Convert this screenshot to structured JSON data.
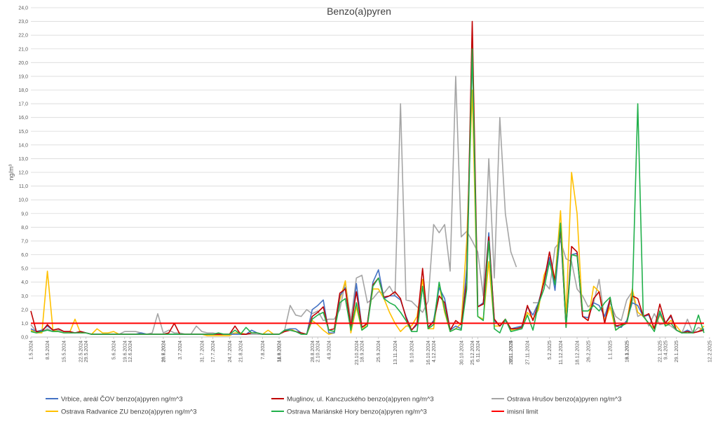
{
  "chart_data": {
    "type": "line",
    "title": "Benzo(a)pyren",
    "xlabel": "",
    "ylabel": "ng/m³",
    "ylim": [
      0,
      24
    ],
    "y_ticks": [
      "0,0",
      "1,0",
      "2,0",
      "3,0",
      "4,0",
      "5,0",
      "6,0",
      "7,0",
      "8,0",
      "9,0",
      "10,0",
      "11,0",
      "12,0",
      "13,0",
      "14,0",
      "15,0",
      "16,0",
      "17,0",
      "18,0",
      "19,0",
      "20,0",
      "21,0",
      "22,0",
      "23,0",
      "24,0"
    ],
    "grid": true,
    "legend_position": "bottom",
    "x": [
      "1.5.2024",
      "2.5.2024",
      "5.5.2024",
      "8.5.2024",
      "11.5.2024",
      "14.5.2024",
      "17.5.2024",
      "20.5.2024",
      "23.5.2024",
      "26.5.2024",
      "29.5.2024",
      "1.6.2024",
      "4.6.2024",
      "7.6.2024",
      "10.6.2024",
      "13.6.2024",
      "16.6.2024",
      "19.6.2024",
      "22.6.2024",
      "25.6.2024",
      "28.6.2024",
      "1.7.2024",
      "4.7.2024",
      "7.7.2024",
      "10.7.2024",
      "13.7.2024",
      "16.7.2024",
      "19.7.2024",
      "22.7.2024",
      "25.7.2024",
      "28.7.2024",
      "31.7.2024",
      "3.8.2024",
      "6.8.2024",
      "9.8.2024",
      "12.8.2024",
      "15.8.2024",
      "18.8.2024",
      "21.8.2024",
      "24.8.2024",
      "27.8.2024",
      "30.8.2024",
      "2.9.2024",
      "5.9.2024",
      "8.9.2024",
      "11.9.2024",
      "14.9.2024",
      "17.9.2024",
      "20.9.2024",
      "23.9.2024",
      "26.9.2024",
      "29.9.2024",
      "2.10.2024",
      "5.10.2024",
      "8.10.2024",
      "11.10.2024",
      "14.10.2024",
      "17.10.2024",
      "20.10.2024",
      "23.10.2024",
      "26.10.2024",
      "29.10.2024",
      "1.11.2024",
      "4.11.2024",
      "7.11.2024",
      "10.11.2024",
      "13.11.2024",
      "16.11.2024",
      "19.11.2024",
      "22.11.2024",
      "25.11.2024",
      "28.11.2024",
      "1.12.2024",
      "4.12.2024",
      "7.12.2024",
      "10.12.2024",
      "13.12.2024",
      "16.12.2024",
      "19.12.2024",
      "22.12.2024",
      "25.12.2024",
      "28.12.2024",
      "31.12.2024",
      "3.1.2025",
      "6.1.2025",
      "9.1.2025",
      "12.1.2025",
      "15.1.2025",
      "18.1.2025",
      "21.1.2025",
      "24.1.2025",
      "27.1.2025",
      "30.1.2025",
      "2.2.2025",
      "5.2.2025",
      "8.2.2025",
      "11.2.2025",
      "14.2.2025",
      "17.2.2025",
      "20.2.2025",
      "23.2.2025",
      "26.2.2025",
      "1.3.2025",
      "4.3.2025",
      "7.3.2025",
      "10.3.2025",
      "13.3.2025",
      "16.3.2025",
      "19.3.2025",
      "22.3.2025",
      "25.3.2025",
      "28.3.2025",
      "31.3.2025",
      "3.4.2025",
      "6.4.2025",
      "9.4.2025",
      "12.4.2025",
      "15.4.2025",
      "18.4.2025",
      "21.4.2025",
      "24.4.2025",
      "27.4.2025",
      "30.4.2025"
    ],
    "x_tick_labels": [
      "1.5.2024",
      "8.5.2024",
      "15.5.2024",
      "22.5.2024",
      "29.5.2024",
      "5.6.2024",
      "12.6.2024",
      "19.6.2024",
      "26.6.2024",
      "3.7.2024",
      "10.7.2024",
      "17.7.2024",
      "24.7.2024",
      "31.7.2024",
      "7.8.2024",
      "14.8.2024",
      "21.8.2024",
      "28.8.2024",
      "4.9.2024",
      "11.9.2024",
      "18.9.2024",
      "25.9.2024",
      "2.10.2024",
      "9.10.2024",
      "16.10.2024",
      "23.10.2024",
      "30.10.2024",
      "6.11.2024",
      "13.11.2024",
      "20.11.2024",
      "27.11.2024",
      "4.12.2024",
      "11.12.2024",
      "18.12.2024",
      "25.12.2024",
      "1.1.2025",
      "8.1.2025",
      "15.1.2025",
      "22.1.2025",
      "29.1.2025",
      "5.2.2025",
      "12.2.2025",
      "19.2.2025",
      "26.2.2025",
      "5.3.2025",
      "12.3.2025",
      "19.3.2025",
      "26.3.2025",
      "2.4.2025",
      "9.4.2025",
      "16.4.2025",
      "23.4.2025"
    ],
    "series": [
      {
        "name": "Vrbice, areál ČOV benzo(a)pyren ng/m^3",
        "color": "#4472C4",
        "width": 1.6,
        "values": [
          0.6,
          0.4,
          0.5,
          0.8,
          0.5,
          0.6,
          0.4,
          0.4,
          0.3,
          0.4,
          0.3,
          0.2,
          0.2,
          0.2,
          0.2,
          0.2,
          0.2,
          0.2,
          0.2,
          0.2,
          0.3,
          0.2,
          0.2,
          0.2,
          0.2,
          0.2,
          0.2,
          0.2,
          0.2,
          0.2,
          0.2,
          0.2,
          0.2,
          0.2,
          0.2,
          0.2,
          0.2,
          0.2,
          0.2,
          0.2,
          0.5,
          0.3,
          0.2,
          0.2,
          0.2,
          0.2,
          0.5,
          0.6,
          0.6,
          0.3,
          0.2,
          2.0,
          2.3,
          2.7,
          0.3,
          0.3,
          3.0,
          3.6,
          0.5,
          3.9,
          0.7,
          1.0,
          4.0,
          4.9,
          2.8,
          3.0,
          3.0,
          2.7,
          1.5,
          0.5,
          0.9,
          3.7,
          0.7,
          1.2,
          3.6,
          2.8,
          0.5,
          0.8,
          0.6,
          5.0,
          21.0,
          2.2,
          2.5,
          7.6,
          1.2,
          0.8,
          1.2,
          0.6,
          0.7,
          0.8,
          2.2,
          1.6,
          2.5,
          4.0,
          5.8,
          3.4,
          7.8,
          0.8,
          6.0,
          6.1,
          1.5,
          1.4,
          2.5,
          2.3,
          1.5,
          2.8,
          0.8,
          0.7,
          1.2,
          2.5,
          2.3,
          1.5,
          1.6,
          0.6,
          1.7,
          1.0,
          1.5,
          0.5,
          0.3,
          0.5,
          0.3,
          0.4,
          0.6
        ]
      },
      {
        "name": "Muglinov, ul. Kanczuckého benzo(a)pyren ng/m^3",
        "color": "#C00000",
        "width": 1.6,
        "values": [
          1.9,
          0.4,
          0.4,
          0.9,
          0.5,
          0.6,
          0.4,
          0.4,
          0.3,
          0.4,
          0.3,
          0.2,
          0.2,
          0.2,
          0.2,
          0.2,
          0.2,
          0.2,
          0.2,
          0.2,
          0.2,
          0.2,
          0.2,
          0.2,
          0.2,
          0.3,
          1.0,
          0.2,
          0.2,
          0.2,
          0.2,
          0.2,
          0.2,
          0.2,
          0.2,
          0.2,
          0.2,
          0.8,
          0.2,
          0.2,
          0.3,
          0.3,
          0.2,
          0.2,
          0.2,
          0.2,
          0.4,
          0.5,
          0.4,
          0.3,
          0.2,
          1.5,
          1.8,
          2.2,
          0.5,
          0.6,
          3.2,
          3.5,
          0.8,
          3.3,
          0.7,
          1.0,
          3.8,
          4.3,
          2.9,
          3.0,
          3.3,
          2.8,
          1.4,
          0.5,
          1.0,
          5.0,
          0.7,
          1.1,
          3.0,
          2.5,
          0.5,
          1.2,
          0.9,
          4.0,
          23.0,
          2.2,
          2.4,
          7.3,
          1.3,
          0.8,
          1.3,
          0.6,
          0.6,
          0.7,
          2.3,
          1.2,
          2.4,
          4.0,
          6.2,
          4.1,
          8.0,
          0.7,
          6.6,
          6.2,
          1.5,
          1.2,
          2.8,
          3.3,
          1.0,
          2.8,
          0.8,
          0.9,
          1.0,
          3.0,
          2.8,
          1.5,
          1.7,
          0.6,
          2.4,
          1.0,
          1.6,
          0.5,
          0.3,
          0.4,
          0.3,
          0.4,
          0.5
        ]
      },
      {
        "name": "Ostrava Hrušov benzo(a)pyren ng/m^3",
        "color": "#A5A5A5",
        "width": 1.6,
        "values": [
          0.9,
          0.4,
          0.4,
          0.6,
          0.4,
          0.5,
          0.4,
          0.3,
          0.3,
          0.4,
          0.3,
          0.2,
          0.2,
          0.2,
          0.2,
          0.2,
          0.2,
          0.4,
          0.4,
          0.4,
          0.3,
          0.2,
          0.3,
          1.7,
          0.3,
          0.5,
          0.3,
          0.3,
          0.2,
          0.2,
          0.8,
          0.4,
          0.3,
          0.3,
          0.2,
          0.2,
          0.2,
          0.3,
          0.2,
          0.2,
          0.2,
          0.2,
          0.2,
          0.2,
          0.2,
          0.2,
          0.5,
          2.3,
          1.6,
          1.5,
          2.0,
          1.7,
          1.9,
          1.2,
          1.3,
          1.3,
          2.0,
          4.0,
          1.2,
          4.3,
          4.5,
          2.5,
          2.8,
          3.3,
          3.2,
          3.7,
          3.0,
          17.0,
          2.7,
          2.6,
          2.2,
          1.8,
          2.6,
          8.2,
          7.6,
          8.2,
          4.8,
          19.0,
          7.3,
          7.7,
          7.0,
          6.2,
          3.0,
          13.0,
          4.3,
          16.0,
          9.0,
          6.2,
          5.1,
          null,
          null,
          2.5,
          2.5,
          4.0,
          3.5,
          6.5,
          7.0,
          5.7,
          5.5,
          3.5,
          3.0,
          2.2,
          2.5,
          4.2,
          1.2,
          2.5,
          1.5,
          1.2,
          2.7,
          3.3,
          1.5,
          1.7,
          0.8,
          1.7,
          0.9,
          1.0,
          0.8,
          0.5,
          0.3,
          1.3,
          0.3,
          0.7,
          0.5
        ]
      },
      {
        "name": "Ostrava Radvanice ZU benzo(a)pyren ng/m^3",
        "color": "#FFC000",
        "width": 1.6,
        "values": [
          0.5,
          0.3,
          0.3,
          4.8,
          0.5,
          0.4,
          0.3,
          0.3,
          1.3,
          0.3,
          0.3,
          0.2,
          0.6,
          0.3,
          0.3,
          0.4,
          0.2,
          0.2,
          0.2,
          0.2,
          0.2,
          0.2,
          0.2,
          0.2,
          0.2,
          0.2,
          0.2,
          0.2,
          0.2,
          0.2,
          0.2,
          0.2,
          0.1,
          0.1,
          0.1,
          0.1,
          0.1,
          0.3,
          0.3,
          0.2,
          0.3,
          0.3,
          0.2,
          0.5,
          0.2,
          0.2,
          0.5,
          0.6,
          0.4,
          0.3,
          0.2,
          1.2,
          0.9,
          0.5,
          0.2,
          0.3,
          2.7,
          4.1,
          0.3,
          2.2,
          0.5,
          1.0,
          3.5,
          3.5,
          2.8,
          1.8,
          1.0,
          0.4,
          0.8,
          0.8,
          1.5,
          4.2,
          0.6,
          0.6,
          3.8,
          1.8,
          0.4,
          0.6,
          1.0,
          7.0,
          18.0,
          1.5,
          1.3,
          5.5,
          0.8,
          0.8,
          1.3,
          0.5,
          0.6,
          0.8,
          1.8,
          1.3,
          2.0,
          4.5,
          5.5,
          4.2,
          9.2,
          1.5,
          12.0,
          9.0,
          1.5,
          1.2,
          3.7,
          3.3,
          1.2,
          2.2,
          0.5,
          0.8,
          1.0,
          3.5,
          1.8,
          1.5,
          1.0,
          0.6,
          1.6,
          0.9,
          1.2,
          0.8,
          0.3,
          0.4,
          0.3,
          0.4,
          0.8
        ]
      },
      {
        "name": "Ostrava Mariánské Hory benzo(a)pyren ng/m^3",
        "color": "#21B04B",
        "width": 1.6,
        "values": [
          0.4,
          0.3,
          0.4,
          0.5,
          0.4,
          0.4,
          0.3,
          0.3,
          0.3,
          0.3,
          0.3,
          0.2,
          0.2,
          0.2,
          0.2,
          0.2,
          0.2,
          0.2,
          0.2,
          0.2,
          0.2,
          0.2,
          0.2,
          0.2,
          0.2,
          0.2,
          0.2,
          0.2,
          0.2,
          0.2,
          0.2,
          0.2,
          0.2,
          0.2,
          0.3,
          0.2,
          0.2,
          0.5,
          0.2,
          0.7,
          0.3,
          0.3,
          0.2,
          0.2,
          0.2,
          0.2,
          0.5,
          0.5,
          0.4,
          0.2,
          0.2,
          1.3,
          1.6,
          1.8,
          0.5,
          0.4,
          2.5,
          2.8,
          0.5,
          2.5,
          0.5,
          0.8,
          3.7,
          4.3,
          2.8,
          2.5,
          2.3,
          1.8,
          1.2,
          0.4,
          0.4,
          3.7,
          0.6,
          0.9,
          4.0,
          2.0,
          0.4,
          0.6,
          0.5,
          3.5,
          21.0,
          1.5,
          1.2,
          7.0,
          0.6,
          0.3,
          1.3,
          0.4,
          0.5,
          0.6,
          1.6,
          0.5,
          2.4,
          3.5,
          5.5,
          3.8,
          8.3,
          0.7,
          6.0,
          5.9,
          1.9,
          1.9,
          2.3,
          1.9,
          2.5,
          2.9,
          0.5,
          0.8,
          1.0,
          2.7,
          17.0,
          1.5,
          1.0,
          0.4,
          1.9,
          0.8,
          1.0,
          0.5,
          0.3,
          0.3,
          0.3,
          1.6,
          0.3
        ]
      }
    ],
    "reference_line": {
      "name": "imisní limit",
      "value": 1.0,
      "color": "#FF0000",
      "width": 2
    }
  }
}
